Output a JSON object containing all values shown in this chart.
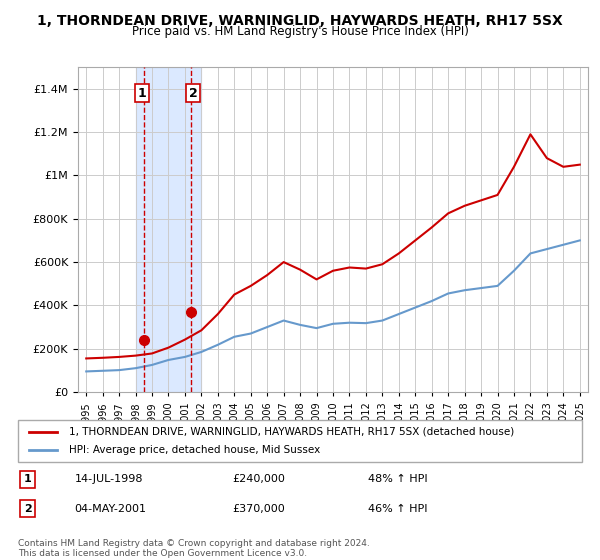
{
  "title": "1, THORNDEAN DRIVE, WARNINGLID, HAYWARDS HEATH, RH17 5SX",
  "subtitle": "Price paid vs. HM Land Registry's House Price Index (HPI)",
  "legend_line1": "1, THORNDEAN DRIVE, WARNINGLID, HAYWARDS HEATH, RH17 5SX (detached house)",
  "legend_line2": "HPI: Average price, detached house, Mid Sussex",
  "transaction1_label": "1",
  "transaction1_date": "14-JUL-1998",
  "transaction1_price": "£240,000",
  "transaction1_hpi": "48% ↑ HPI",
  "transaction2_label": "2",
  "transaction2_date": "04-MAY-2001",
  "transaction2_price": "£370,000",
  "transaction2_hpi": "46% ↑ HPI",
  "footer": "Contains HM Land Registry data © Crown copyright and database right 2024.\nThis data is licensed under the Open Government Licence v3.0.",
  "red_color": "#cc0000",
  "blue_color": "#6699cc",
  "highlight_color": "#cce0ff",
  "years": [
    1995,
    1996,
    1997,
    1998,
    1999,
    2000,
    2001,
    2002,
    2003,
    2004,
    2005,
    2006,
    2007,
    2008,
    2009,
    2010,
    2011,
    2012,
    2013,
    2014,
    2015,
    2016,
    2017,
    2018,
    2019,
    2020,
    2021,
    2022,
    2023,
    2024,
    2025
  ],
  "hpi_values": [
    95000,
    98000,
    101000,
    110000,
    125000,
    148000,
    162000,
    185000,
    218000,
    255000,
    270000,
    300000,
    330000,
    310000,
    295000,
    315000,
    320000,
    318000,
    330000,
    360000,
    390000,
    420000,
    455000,
    470000,
    480000,
    490000,
    560000,
    640000,
    660000,
    680000,
    700000
  ],
  "red_values": [
    155000,
    158000,
    162000,
    168000,
    178000,
    205000,
    242000,
    285000,
    360000,
    450000,
    490000,
    540000,
    600000,
    565000,
    520000,
    560000,
    575000,
    570000,
    590000,
    640000,
    700000,
    760000,
    825000,
    860000,
    885000,
    910000,
    1040000,
    1190000,
    1080000,
    1040000,
    1050000
  ],
  "transaction1_x": 1998.53,
  "transaction1_y": 240000,
  "transaction2_x": 2001.34,
  "transaction2_y": 370000,
  "ylim": [
    0,
    1500000
  ],
  "xlim_start": 1994.5,
  "xlim_end": 2025.5,
  "background_color": "#ffffff",
  "plot_bg_color": "#ffffff",
  "grid_color": "#cccccc"
}
